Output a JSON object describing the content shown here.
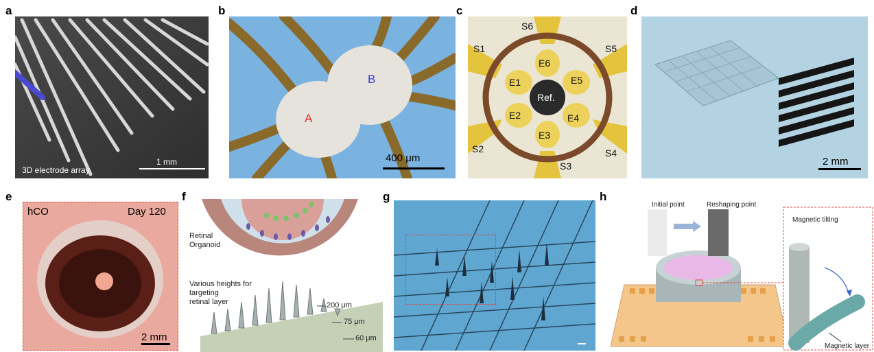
{
  "panels": {
    "a": {
      "label": "a",
      "caption": "3D electrode array",
      "scale": "1 mm"
    },
    "b": {
      "label": "b",
      "region_a": "A",
      "region_b": "B",
      "scale": "400 μm"
    },
    "c": {
      "label": "c",
      "sites": [
        "S1",
        "S2",
        "S3",
        "S4",
        "S5",
        "S6"
      ],
      "electrodes": [
        "E1",
        "E2",
        "E3",
        "E4",
        "E5",
        "E6"
      ],
      "ref": "Ref."
    },
    "d": {
      "label": "d",
      "scale": "2 mm"
    },
    "e": {
      "label": "e",
      "sample": "hCO",
      "day": "Day 120",
      "scale": "2 mm"
    },
    "f": {
      "label": "f",
      "organoid": "Retinal\nOrganoid",
      "heights_note": "Various heights for\ntargeting\nretinal layer",
      "h1": "200 μm",
      "h2": "75 μm",
      "h3": "60 μm"
    },
    "g": {
      "label": "g"
    },
    "h": {
      "label": "h",
      "initial": "Initial point",
      "reshaping": "Reshaping point",
      "tilting": "Magnetic tilting",
      "layer": "Magnetic layer"
    }
  },
  "colors": {
    "sem_bg": "#3a3a3a",
    "blue_bg": "#6aa9d8",
    "gold": "#e2c23a",
    "pink": "#e8a39a",
    "retina_purple": "#6c5aa8",
    "retina_green": "#7ec26a",
    "dash_red": "#e0453a",
    "orange_pads": "#e6a04a"
  }
}
